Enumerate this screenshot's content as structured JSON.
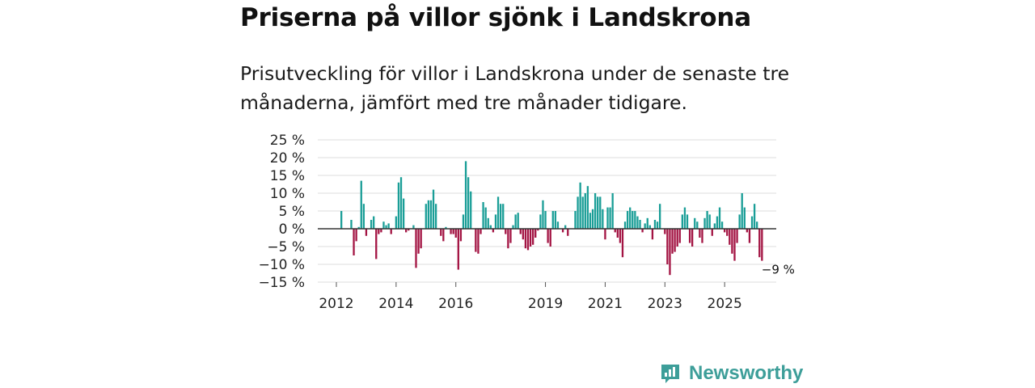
{
  "title": "Priserna på villor sjönk i Landskrona",
  "subtitle": "Prisutveckling för villor i Landskrona under de senaste tre månaderna, jämfört med tre månader tidigare.",
  "brand": {
    "name": "Newsworthy",
    "logo_icon": "newsworthy-logo-icon",
    "color": "#3d9e99"
  },
  "colors": {
    "positive": "#1a9e97",
    "negative": "#a31443",
    "grid": "#dcdcdc",
    "zero": "#333333"
  },
  "chart_data": {
    "type": "bar",
    "title": "Priserna på villor sjönk i Landskrona",
    "xlabel": "",
    "ylabel": "",
    "ylim": [
      -15,
      25
    ],
    "yticks": [
      25,
      20,
      15,
      10,
      5,
      0,
      -5,
      -10,
      -15
    ],
    "ytick_labels": [
      "25 %",
      "20 %",
      "15 %",
      "10 %",
      "5 %",
      "0 %",
      "−5 %",
      "−10 %",
      "−15 %"
    ],
    "xticks": [
      {
        "label": "2012",
        "index": 0
      },
      {
        "label": "2014",
        "index": 24
      },
      {
        "label": "2016",
        "index": 48
      },
      {
        "label": "2019",
        "index": 84
      },
      {
        "label": "2021",
        "index": 108
      },
      {
        "label": "2023",
        "index": 132
      },
      {
        "label": "2025",
        "index": 156
      }
    ],
    "start": "2012-01",
    "frequency": "monthly",
    "values": [
      0,
      0,
      5,
      0,
      0,
      0,
      2.5,
      -7.5,
      -3.5,
      0.5,
      13.5,
      7,
      -2,
      0,
      2.5,
      3.5,
      -8.5,
      -1.5,
      -1,
      2,
      1,
      1.5,
      -1.5,
      0,
      3.5,
      13,
      14.5,
      8.5,
      -1,
      -0.5,
      0,
      1,
      -11,
      -7,
      -5.5,
      0,
      7,
      8,
      8,
      11,
      7,
      0,
      -2,
      -3.5,
      0.5,
      0,
      -1.5,
      -1.5,
      -2.5,
      -11.5,
      -3.5,
      4,
      19,
      14.5,
      10.5,
      0,
      -6.5,
      -7,
      -1.5,
      7.5,
      6,
      3,
      1,
      -1,
      4,
      9,
      7,
      7,
      -1.5,
      -5.5,
      -4,
      1,
      4,
      4.5,
      -1.5,
      -3,
      -5.5,
      -6,
      -5,
      -4.5,
      -2.5,
      -0.5,
      4,
      8,
      5,
      -4,
      -5,
      5,
      5,
      2,
      0,
      -1,
      1,
      -2,
      0,
      0,
      5,
      9,
      13,
      9,
      10,
      12,
      4.5,
      5.5,
      10,
      9,
      9,
      5.5,
      -3,
      6,
      6,
      10,
      -1,
      -2.5,
      -4,
      -8,
      2,
      5,
      6,
      5,
      5,
      3.5,
      2.5,
      -1,
      1.5,
      3,
      1,
      -3,
      2.5,
      2,
      7,
      0,
      -1.5,
      -10,
      -13,
      -7,
      -6.5,
      -5,
      -4,
      4,
      6,
      4,
      -4,
      -5,
      3,
      2,
      -2.5,
      -4,
      3,
      5,
      4,
      -2,
      1.5,
      3.5,
      6,
      2,
      -1,
      -2,
      -4.5,
      -7,
      -9,
      -4,
      4,
      10,
      6,
      -1,
      -4,
      3.5,
      7,
      2,
      -8,
      -9
    ],
    "annotations": [
      {
        "label": "−9 %",
        "at": "last"
      }
    ]
  }
}
